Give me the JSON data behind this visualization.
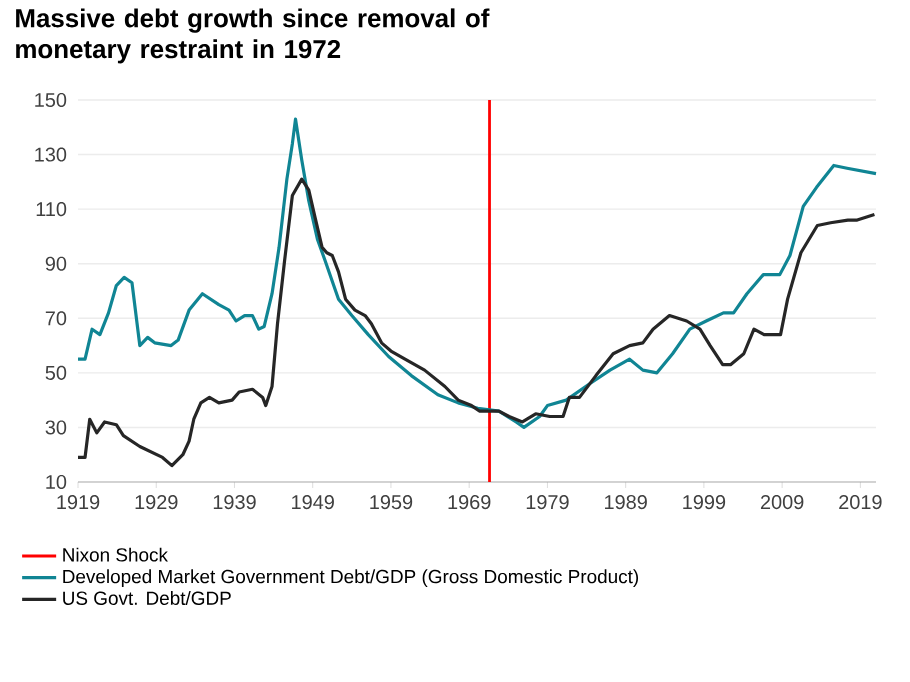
{
  "chart_data": {
    "type": "line",
    "title": "Massive debt growth since removal of monetary restraint in 1972",
    "xlim": [
      1919,
      2021
    ],
    "xticks": [
      1919,
      1929,
      1939,
      1949,
      1959,
      1969,
      1979,
      1989,
      1999,
      2009,
      2019
    ],
    "ylim": [
      10,
      150
    ],
    "yticks": [
      10,
      30,
      50,
      70,
      90,
      110,
      130,
      150
    ],
    "grid": "y",
    "legend": "bottom",
    "marker": "none",
    "line_style": "solid",
    "ref_lines": [
      {
        "axis": "x",
        "value": 1971.6,
        "label": "Nixon Shock",
        "color": "#ff0000"
      }
    ],
    "series": [
      {
        "name": "Developed Market Government Debt/GDP (Gross Domestic Product)",
        "color": "#108594",
        "x": [
          1919,
          1919.9,
          1920.8,
          1921.8,
          1922.9,
          1923.9,
          1924.9,
          1925.9,
          1926.9,
          1927.9,
          1928.8,
          1930.9,
          1931.8,
          1933.2,
          1934.9,
          1937,
          1938.3,
          1939.2,
          1940.3,
          1941.3,
          1942.1,
          1942.8,
          1943.8,
          1944.7,
          1945.7,
          1946.4,
          1946.8,
          1947.6,
          1948.5,
          1949.6,
          1950.6,
          1952.3,
          1954,
          1956.1,
          1958.7,
          1961.6,
          1965,
          1967.6,
          1970.1,
          1972.8,
          1975,
          1976,
          1978,
          1979,
          1981.4,
          1984.4,
          1987,
          1989.5,
          1991.2,
          1993,
          1995,
          1997.2,
          1999.3,
          2001.5,
          2002.8,
          2004.5,
          2006.6,
          2008.7,
          2010,
          2011.7,
          2013.4,
          2015.6,
          2017.3,
          2021
        ],
        "values": [
          55,
          55,
          66,
          64,
          72,
          82,
          85,
          83,
          60,
          63,
          61,
          60,
          62,
          73,
          79,
          75,
          73,
          69,
          71,
          71,
          66,
          67,
          79,
          96,
          121,
          134,
          143,
          128,
          113,
          99,
          91,
          77,
          71,
          64,
          56,
          49,
          42,
          39,
          37,
          36,
          32,
          30,
          34,
          38,
          40,
          46,
          51,
          55,
          51,
          50,
          57,
          66,
          69,
          72,
          72,
          79,
          86,
          86,
          93,
          111,
          118,
          126,
          125,
          123
        ]
      },
      {
        "name": "US Govt. Debt/GDP",
        "color": "#262626",
        "x": [
          1919,
          1919.9,
          1920.5,
          1921.4,
          1922.4,
          1923.9,
          1924.8,
          1926.9,
          1929.8,
          1931,
          1932.4,
          1933.2,
          1933.8,
          1934.7,
          1935.8,
          1937,
          1938.7,
          1939.6,
          1941.3,
          1942.6,
          1943,
          1943.8,
          1944.5,
          1945.4,
          1946.4,
          1947.6,
          1948.5,
          1949.3,
          1950.2,
          1950.8,
          1951.5,
          1952.3,
          1953.2,
          1954.4,
          1955.7,
          1956.5,
          1957.8,
          1959,
          1960.8,
          1963.3,
          1965.9,
          1967.6,
          1969.3,
          1970.3,
          1972.8,
          1974.1,
          1975.8,
          1977.5,
          1979.3,
          1981,
          1981.8,
          1983.1,
          1985.2,
          1987.4,
          1989.5,
          1991.2,
          1992.5,
          1994.6,
          1996.8,
          1998.5,
          1999.8,
          2001.4,
          2002.4,
          2004.1,
          2005.4,
          2006.7,
          2008.8,
          2009.7,
          2011.4,
          2013.5,
          2015.2,
          2017.4,
          2018.6,
          2020.8
        ],
        "values": [
          19,
          19,
          33,
          28,
          32,
          31,
          27,
          23,
          19,
          16,
          20,
          25,
          33,
          39,
          41,
          39,
          40,
          43,
          44,
          41,
          38,
          45,
          68,
          91,
          115,
          121,
          117,
          107,
          96,
          94,
          93,
          87,
          77,
          73,
          71,
          68,
          61,
          58,
          55,
          51,
          45,
          40,
          38,
          36,
          36,
          34,
          32,
          35,
          34,
          34,
          41,
          41,
          49,
          57,
          60,
          61,
          66,
          71,
          69,
          66,
          60,
          53,
          53,
          57,
          66,
          64,
          64,
          77,
          94,
          104,
          105,
          106,
          106,
          108
        ]
      }
    ]
  }
}
